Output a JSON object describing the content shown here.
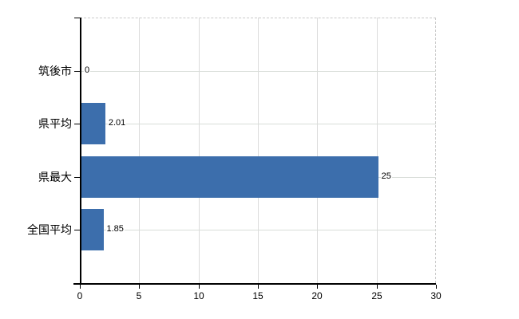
{
  "chart_data": {
    "type": "bar",
    "orientation": "horizontal",
    "title": "",
    "categories": [
      "筑後市",
      "県平均",
      "県最大",
      "全国平均"
    ],
    "values": [
      0,
      2.01,
      25,
      1.85
    ],
    "data_labels": [
      "0",
      "2.01",
      "25",
      "1.85"
    ],
    "xlabel": "",
    "ylabel": "",
    "xlim": [
      0,
      30
    ],
    "x_tick_values": [
      0,
      5,
      10,
      15,
      20,
      25,
      30
    ],
    "x_tick_labels": [
      "0",
      "5",
      "10",
      "15",
      "20",
      "25",
      "30"
    ],
    "grid": true,
    "legend": false,
    "colors": {
      "bar": "#3c6eac",
      "axis": "#000000",
      "gridline": "#dcdcdc",
      "plot_border": "#c9c9c9",
      "text": "#000000",
      "background": "#ffffff"
    }
  }
}
